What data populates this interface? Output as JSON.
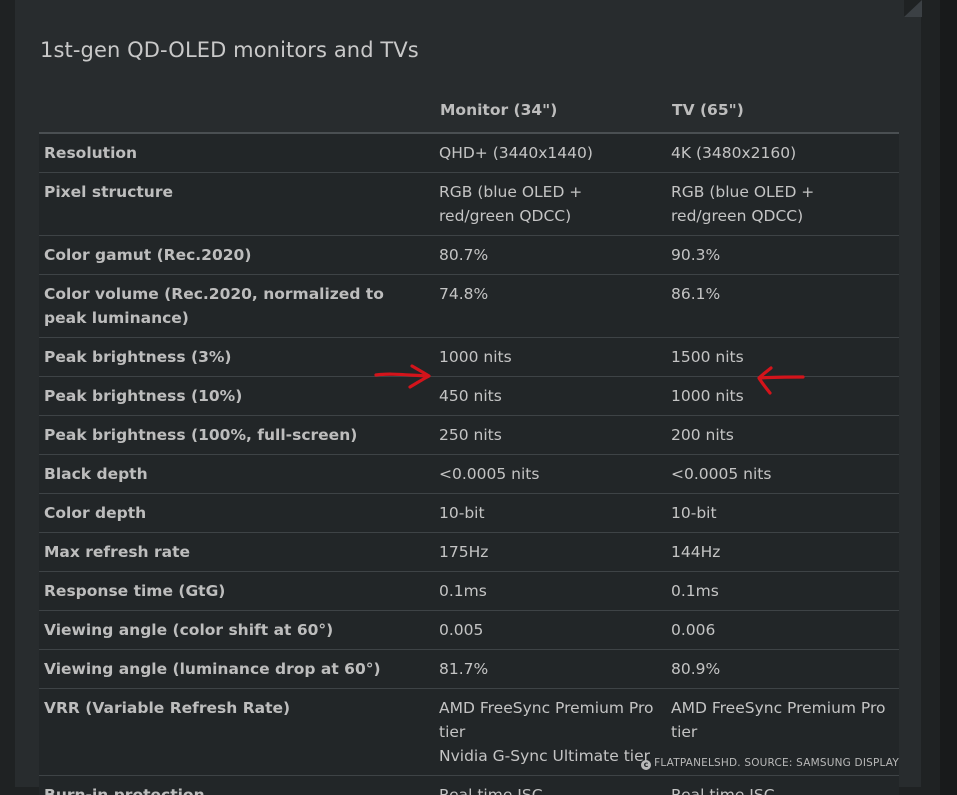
{
  "title": "1st-gen QD-OLED monitors and TVs",
  "columns": [
    "",
    "Monitor (34\")",
    "TV (65\")"
  ],
  "rows": [
    {
      "label": "Resolution",
      "monitor": "QHD+ (3440x1440)",
      "tv": "4K (3480x2160)"
    },
    {
      "label": "Pixel structure",
      "monitor": "RGB (blue OLED + red/green QDCC)",
      "tv": "RGB (blue OLED + red/green QDCC)"
    },
    {
      "label": "Color gamut (Rec.2020)",
      "monitor": "80.7%",
      "tv": "90.3%"
    },
    {
      "label": "Color volume (Rec.2020, normalized to peak luminance)",
      "monitor": "74.8%",
      "tv": "86.1%"
    },
    {
      "label": "Peak brightness (3%)",
      "monitor": "1000 nits",
      "tv": "1500 nits"
    },
    {
      "label": "Peak brightness (10%)",
      "monitor": "450 nits",
      "tv": "1000 nits"
    },
    {
      "label": "Peak brightness (100%, full-screen)",
      "monitor": "250 nits",
      "tv": "200 nits"
    },
    {
      "label": "Black depth",
      "monitor": "<0.0005 nits",
      "tv": "<0.0005 nits"
    },
    {
      "label": "Color depth",
      "monitor": "10-bit",
      "tv": "10-bit"
    },
    {
      "label": "Max refresh rate",
      "monitor": "175Hz",
      "tv": "144Hz"
    },
    {
      "label": "Response time (GtG)",
      "monitor": "0.1ms",
      "tv": "0.1ms"
    },
    {
      "label": "Viewing angle (color shift at 60°)",
      "monitor": "0.005",
      "tv": "0.006"
    },
    {
      "label": "Viewing angle (luminance drop at 60°)",
      "monitor": "81.7%",
      "tv": "80.9%"
    },
    {
      "label": "VRR (Variable Refresh Rate)",
      "monitor": "AMD FreeSync Premium Pro tier",
      "monitor_line2": "Nvidia G-Sync Ultimate tier",
      "tv": "AMD FreeSync Premium Pro tier"
    },
    {
      "label": "Burn-in protection",
      "monitor": "Real time ISC",
      "tv": "Real time ISC"
    }
  ],
  "credit": {
    "icon": "copyright-icon",
    "symbol": "c",
    "text": "FLATPANELSHD. SOURCE: SAMSUNG DISPLAY"
  },
  "annotations": {
    "color": "#d3141b",
    "highlighted_row": "Peak brightness (10%)"
  }
}
